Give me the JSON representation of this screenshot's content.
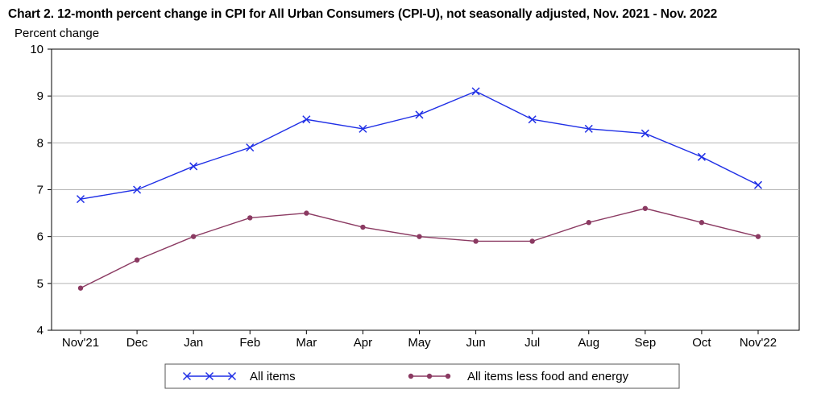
{
  "chart_data": {
    "type": "line",
    "title": "Chart 2. 12-month percent change in CPI for All Urban Consumers (CPI-U), not seasonally adjusted, Nov. 2021 - Nov. 2022",
    "ylabel": "Percent change",
    "xlabel": "",
    "categories": [
      "Nov'21",
      "Dec",
      "Jan",
      "Feb",
      "Mar",
      "Apr",
      "May",
      "Jun",
      "Jul",
      "Aug",
      "Sep",
      "Oct",
      "Nov'22"
    ],
    "ylim": [
      4,
      10
    ],
    "yticks": [
      4,
      5,
      6,
      7,
      8,
      9,
      10
    ],
    "grid": true,
    "legend_position": "bottom",
    "series": [
      {
        "name": "All items",
        "color": "#1f2fe6",
        "marker": "x",
        "values": [
          6.8,
          7.0,
          7.5,
          7.9,
          8.5,
          8.3,
          8.6,
          9.1,
          8.5,
          8.3,
          8.2,
          7.7,
          7.1
        ]
      },
      {
        "name": "All items less food and energy",
        "color": "#8b3a62",
        "marker": "circle",
        "values": [
          4.9,
          5.5,
          6.0,
          6.4,
          6.5,
          6.2,
          6.0,
          5.9,
          5.9,
          6.3,
          6.6,
          6.3,
          6.0
        ]
      }
    ]
  }
}
